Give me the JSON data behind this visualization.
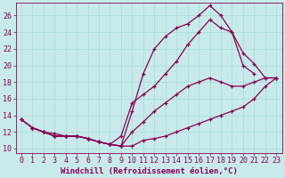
{
  "xlabel": "Windchill (Refroidissement éolien,°C)",
  "bg_color": "#c8eaea",
  "line_color": "#880055",
  "grid_color": "#aadddd",
  "xlim": [
    -0.5,
    23.5
  ],
  "ylim": [
    9.5,
    27.5
  ],
  "xticks": [
    0,
    1,
    2,
    3,
    4,
    5,
    6,
    7,
    8,
    9,
    10,
    11,
    12,
    13,
    14,
    15,
    16,
    17,
    18,
    19,
    20,
    21,
    22,
    23
  ],
  "yticks": [
    10,
    12,
    14,
    16,
    18,
    20,
    22,
    24,
    26
  ],
  "series": [
    {
      "x": [
        0,
        1,
        2,
        3,
        4,
        5,
        6,
        7,
        8,
        9,
        10,
        11,
        12,
        13,
        14,
        15,
        16,
        17,
        18,
        19,
        20,
        21
      ],
      "y": [
        13.5,
        12.5,
        12.0,
        11.5,
        11.5,
        11.5,
        11.2,
        10.8,
        10.5,
        10.3,
        14.5,
        19.0,
        22.0,
        23.5,
        24.5,
        25.0,
        26.0,
        27.2,
        26.0,
        24.0,
        20.0,
        19.0
      ]
    },
    {
      "x": [
        0,
        1,
        2,
        3,
        4,
        5,
        6,
        7,
        8,
        9,
        10,
        11,
        12,
        13,
        14,
        15,
        16,
        17,
        18,
        19,
        20,
        21,
        22,
        23
      ],
      "y": [
        13.5,
        12.5,
        12.0,
        11.5,
        11.5,
        11.5,
        11.2,
        10.8,
        10.5,
        11.5,
        15.5,
        16.5,
        17.5,
        19.0,
        20.5,
        22.5,
        24.0,
        25.5,
        24.5,
        24.0,
        21.5,
        20.2,
        18.5,
        18.5
      ]
    },
    {
      "x": [
        0,
        1,
        2,
        3,
        4,
        5,
        6,
        7,
        8,
        9,
        10,
        11,
        12,
        13,
        14,
        15,
        16,
        17,
        18,
        19,
        20,
        21,
        22,
        23
      ],
      "y": [
        13.5,
        12.5,
        12.0,
        11.5,
        11.5,
        11.5,
        11.2,
        10.8,
        10.5,
        10.3,
        12.0,
        13.2,
        14.5,
        15.5,
        16.5,
        17.5,
        18.0,
        18.5,
        18.0,
        17.5,
        17.5,
        18.0,
        18.5,
        18.5
      ]
    },
    {
      "x": [
        1,
        2,
        3,
        4,
        5,
        6,
        7,
        8,
        9,
        10,
        11,
        12,
        13,
        14,
        15,
        16,
        17,
        18,
        19,
        20,
        21,
        22,
        23
      ],
      "y": [
        12.5,
        12.0,
        11.8,
        11.5,
        11.5,
        11.2,
        10.8,
        10.5,
        10.3,
        10.3,
        11.0,
        11.2,
        11.5,
        12.0,
        12.5,
        13.0,
        13.5,
        14.0,
        14.5,
        15.0,
        16.0,
        17.5,
        18.5
      ]
    }
  ],
  "marker": "+",
  "markersize": 3.5,
  "linewidth": 0.9,
  "markeredgewidth": 0.9,
  "fontsize_xlabel": 6.5,
  "fontsize_ticks": 6
}
